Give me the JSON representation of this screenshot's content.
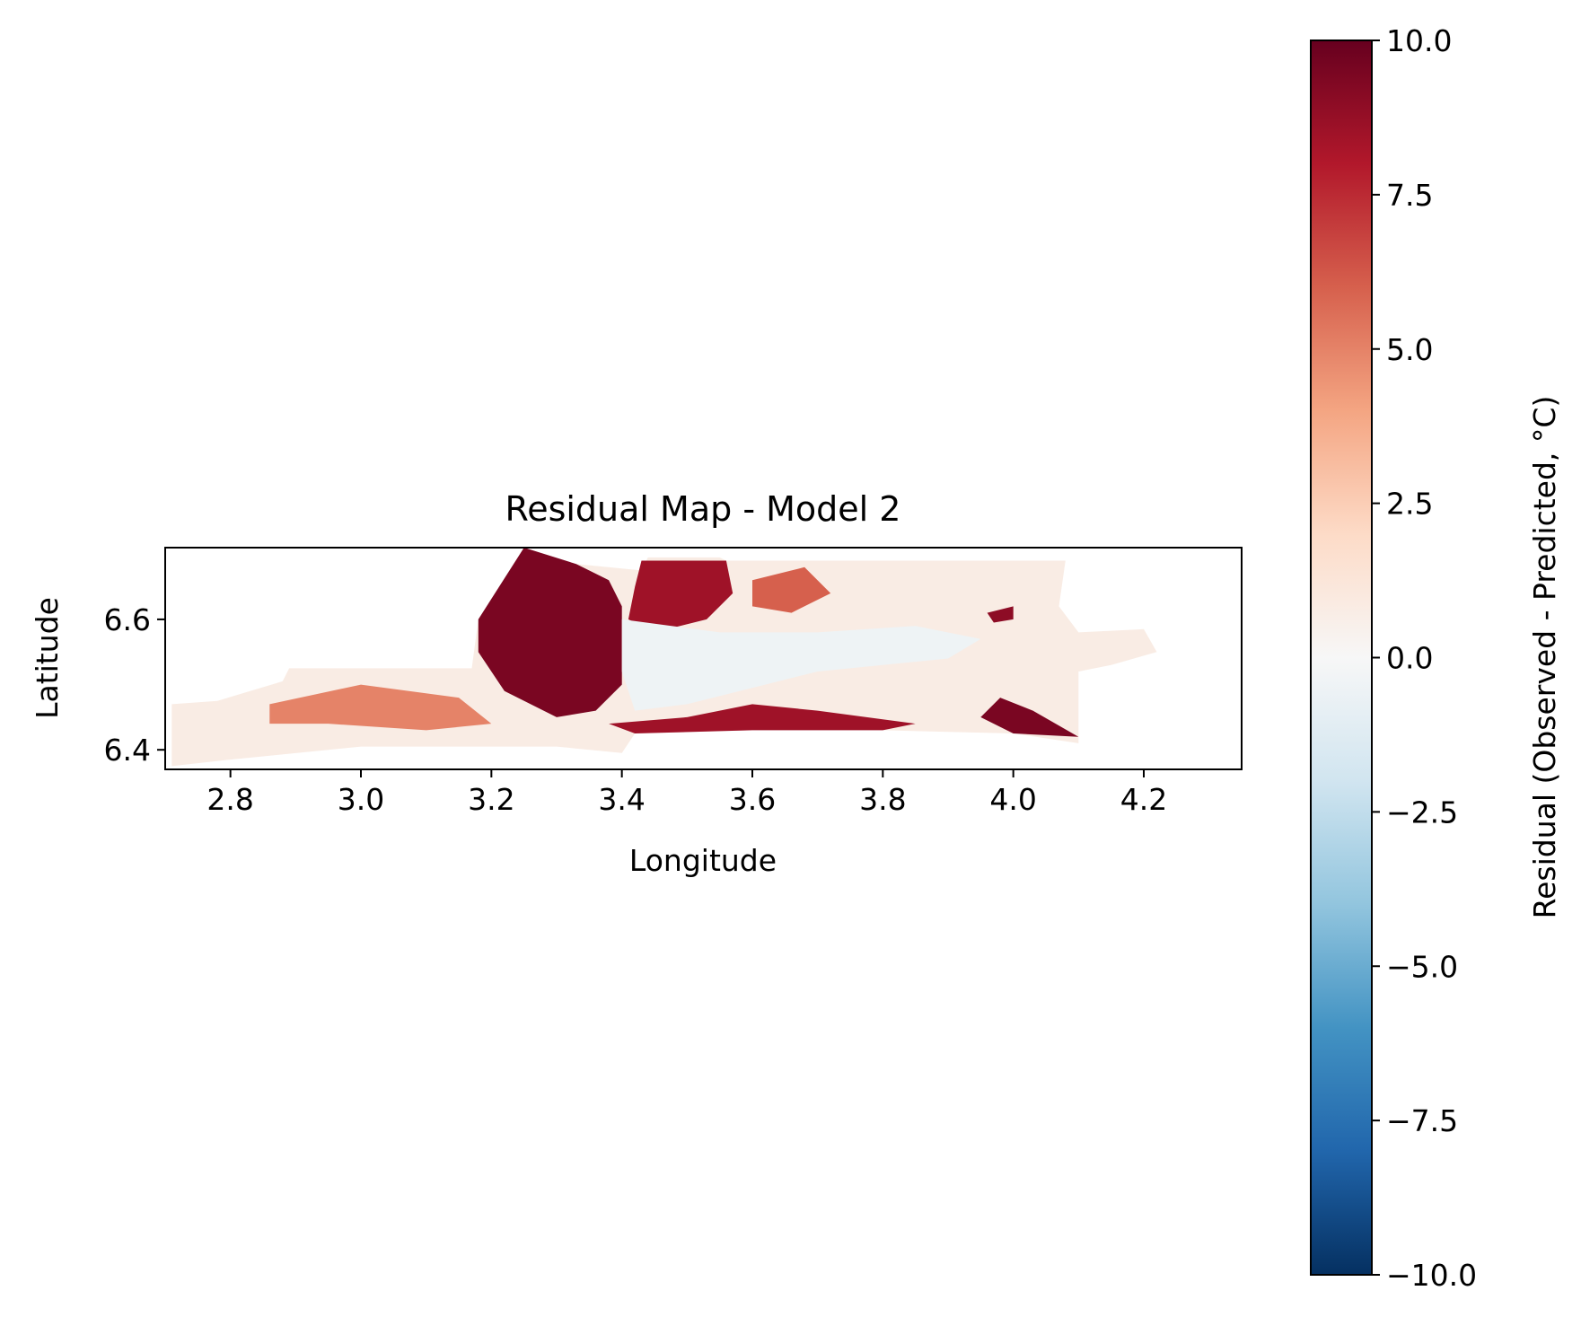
{
  "chart_data": {
    "type": "heatmap",
    "title": "Residual Map - Model 2",
    "xlabel": "Longitude",
    "ylabel": "Latitude",
    "xlim": [
      2.7,
      4.35
    ],
    "ylim": [
      6.37,
      6.71
    ],
    "xticks": [
      "2.8",
      "3.0",
      "3.2",
      "3.4",
      "3.6",
      "3.8",
      "4.0",
      "4.2"
    ],
    "xtick_values": [
      2.8,
      3.0,
      3.2,
      3.4,
      3.6,
      3.8,
      4.0,
      4.2
    ],
    "yticks": [
      "6.4",
      "6.6"
    ],
    "ytick_values": [
      6.4,
      6.6
    ],
    "colormap": "RdBu_r",
    "colorbar": {
      "label": "Residual (Observed - Predicted, °C)",
      "range": [
        -10.0,
        10.0
      ],
      "ticks": [
        "−10.0",
        "−7.5",
        "−5.0",
        "−2.5",
        "0.0",
        "2.5",
        "5.0",
        "7.5",
        "10.0"
      ],
      "tick_values": [
        -10.0,
        -7.5,
        -5.0,
        -2.5,
        0.0,
        2.5,
        5.0,
        7.5,
        10.0
      ],
      "colors": [
        "#053061",
        "#2166ac",
        "#4393c3",
        "#92c5de",
        "#d1e5f0",
        "#f7f7f7",
        "#fddbc7",
        "#f4a582",
        "#d6604d",
        "#b2182b",
        "#67001f"
      ]
    },
    "region_outline": [
      [
        2.71,
        6.375
      ],
      [
        2.71,
        6.47
      ],
      [
        2.78,
        6.475
      ],
      [
        2.88,
        6.505
      ],
      [
        2.89,
        6.525
      ],
      [
        3.05,
        6.525
      ],
      [
        3.17,
        6.525
      ],
      [
        3.18,
        6.6
      ],
      [
        3.25,
        6.71
      ],
      [
        3.33,
        6.685
      ],
      [
        3.43,
        6.675
      ],
      [
        3.44,
        6.695
      ],
      [
        3.55,
        6.695
      ],
      [
        3.56,
        6.69
      ],
      [
        4.08,
        6.69
      ],
      [
        4.07,
        6.62
      ],
      [
        4.1,
        6.58
      ],
      [
        4.2,
        6.585
      ],
      [
        4.22,
        6.55
      ],
      [
        4.15,
        6.53
      ],
      [
        4.1,
        6.52
      ],
      [
        4.1,
        6.41
      ],
      [
        4.0,
        6.425
      ],
      [
        3.8,
        6.43
      ],
      [
        3.6,
        6.43
      ],
      [
        3.42,
        6.425
      ],
      [
        3.4,
        6.395
      ],
      [
        3.3,
        6.405
      ],
      [
        3.0,
        6.405
      ],
      [
        2.8,
        6.385
      ]
    ],
    "residual_patches": [
      {
        "desc": "north lobe",
        "value": 9.5,
        "polygon": [
          [
            3.18,
            6.6
          ],
          [
            3.25,
            6.71
          ],
          [
            3.33,
            6.685
          ],
          [
            3.38,
            6.66
          ],
          [
            3.4,
            6.62
          ],
          [
            3.4,
            6.5
          ],
          [
            3.36,
            6.46
          ],
          [
            3.3,
            6.45
          ],
          [
            3.22,
            6.49
          ],
          [
            3.18,
            6.55
          ]
        ]
      },
      {
        "desc": "northeast block",
        "value": 8.5,
        "polygon": [
          [
            3.43,
            6.69
          ],
          [
            3.56,
            6.69
          ],
          [
            3.57,
            6.64
          ],
          [
            3.53,
            6.6
          ],
          [
            3.45,
            6.58
          ],
          [
            3.41,
            6.6
          ],
          [
            3.42,
            6.65
          ]
        ]
      },
      {
        "desc": "south coast strip",
        "value": 8.5,
        "polygon": [
          [
            3.38,
            6.44
          ],
          [
            3.5,
            6.45
          ],
          [
            3.6,
            6.47
          ],
          [
            3.7,
            6.46
          ],
          [
            3.85,
            6.44
          ],
          [
            3.8,
            6.43
          ],
          [
            3.6,
            6.43
          ],
          [
            3.42,
            6.425
          ]
        ]
      },
      {
        "desc": "east coastal patch",
        "value": 9.5,
        "polygon": [
          [
            3.98,
            6.48
          ],
          [
            4.03,
            6.46
          ],
          [
            4.1,
            6.42
          ],
          [
            4.0,
            6.425
          ],
          [
            3.95,
            6.45
          ]
        ]
      },
      {
        "desc": "west patches",
        "value": 5.0,
        "polygon": [
          [
            2.86,
            6.47
          ],
          [
            3.0,
            6.5
          ],
          [
            3.15,
            6.48
          ],
          [
            3.2,
            6.44
          ],
          [
            3.1,
            6.43
          ],
          [
            2.95,
            6.44
          ],
          [
            2.86,
            6.44
          ]
        ]
      },
      {
        "desc": "lagoon",
        "value": -0.5,
        "polygon": [
          [
            3.4,
            6.6
          ],
          [
            3.55,
            6.58
          ],
          [
            3.7,
            6.58
          ],
          [
            3.85,
            6.59
          ],
          [
            3.95,
            6.57
          ],
          [
            3.9,
            6.54
          ],
          [
            3.7,
            6.52
          ],
          [
            3.5,
            6.47
          ],
          [
            3.42,
            6.46
          ],
          [
            3.4,
            6.52
          ]
        ]
      },
      {
        "desc": "northeast scattered",
        "value": 6.0,
        "polygon": [
          [
            3.6,
            6.66
          ],
          [
            3.68,
            6.68
          ],
          [
            3.72,
            6.64
          ],
          [
            3.66,
            6.61
          ],
          [
            3.6,
            6.62
          ]
        ]
      },
      {
        "desc": "east upper small",
        "value": 9.0,
        "polygon": [
          [
            3.96,
            6.61
          ],
          [
            4.0,
            6.62
          ],
          [
            4.0,
            6.6
          ],
          [
            3.97,
            6.595
          ]
        ]
      }
    ]
  }
}
